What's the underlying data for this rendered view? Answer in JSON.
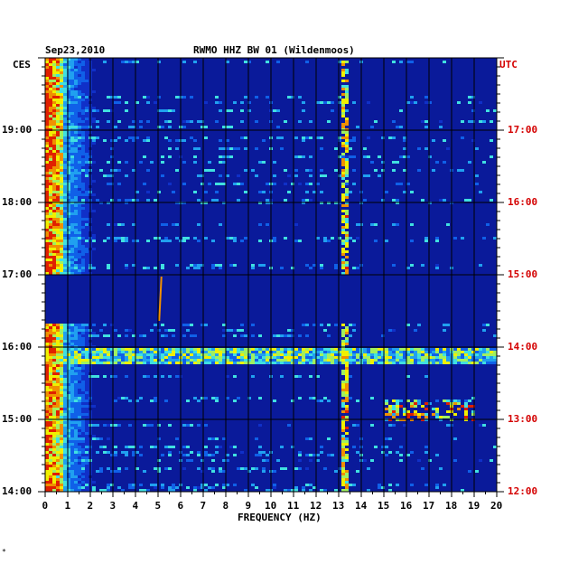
{
  "header": {
    "date": "Sep23,2010",
    "station": "RWMO HHZ BW 01 (Wildenmoos)",
    "left_zone": "CES",
    "right_zone": "UTC"
  },
  "footer": {
    "corner_mark": "*"
  },
  "colors": {
    "background": "#0a1a9a",
    "grid": "#000000",
    "utc_text": "#d40000",
    "ces_text": "#000000"
  },
  "chart_data": {
    "type": "heatmap",
    "title": "RWMO HHZ BW 01 (Wildenmoos)",
    "subtitle": "Sep23,2010",
    "xlabel": "FREQUENCY (HZ)",
    "ylabel": "",
    "xlim": [
      0,
      20
    ],
    "x_ticks": [
      "0",
      "1",
      "2",
      "3",
      "4",
      "5",
      "6",
      "7",
      "8",
      "9",
      "10",
      "11",
      "12",
      "13",
      "14",
      "15",
      "16",
      "17",
      "18",
      "19",
      "20"
    ],
    "left_axis": {
      "zone": "CES",
      "ticks": [
        "19:00",
        "18:00",
        "17:00",
        "16:00",
        "15:00",
        "14:00"
      ]
    },
    "right_axis": {
      "zone": "UTC",
      "ticks": [
        "17:00",
        "16:00",
        "15:00",
        "14:00",
        "13:00",
        "12:00"
      ]
    },
    "grid": true,
    "features": [
      {
        "label": "low-frequency energy band",
        "x_range": [
          0,
          2.5
        ],
        "intensity": "high"
      },
      {
        "label": "data gap",
        "time_ces": [
          "16:20",
          "17:00"
        ]
      },
      {
        "label": "broadband event",
        "time_ces": "15:55",
        "x_range": [
          0,
          20
        ]
      },
      {
        "label": "narrow line",
        "frequency": 13.2
      },
      {
        "label": "narrow line",
        "frequency": 5.2
      },
      {
        "label": "hot spots",
        "x_range": [
          17,
          19
        ],
        "time_ces": "15:05"
      }
    ]
  }
}
